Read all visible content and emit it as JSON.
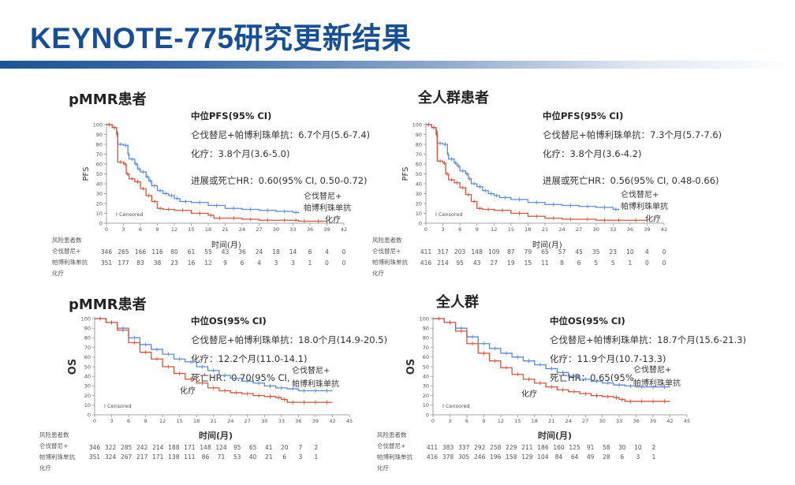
{
  "header": {
    "title": "KEYNOTE-775研究更新结果"
  },
  "colors": {
    "title": "#164f93",
    "lenva_pembro": "#5b8ad0",
    "chemo": "#d0563e"
  },
  "panels": [
    {
      "title": "pMMR患者",
      "stats": {
        "heading": "中位PFS(95% CI)",
        "line1": "仑伐替尼+帕博利珠单抗：6.7个月(5.6-7.4)",
        "line2": "化疗：3.8个月(3.6-5.0)",
        "line3": "进展或死亡HR：0.60(95% CI, 0.50-0.72)"
      },
      "ylabel": "PFS",
      "censored_label": "I  Censored",
      "curve_label_1a": "仑伐替尼+",
      "curve_label_1b": "帕博利珠单抗",
      "curve_label_2": "化疗",
      "xlabel": "时间(月)",
      "risk": {
        "header": "风险患者数",
        "label1a": "仑伐替尼+",
        "label1b": "帕博利珠单抗",
        "label2": "化疗"
      }
    },
    {
      "title": "全人群患者",
      "stats": {
        "heading": "中位PFS(95% CI)",
        "line1": "仑伐替尼+帕博利珠单抗：7.3个月(5.7-7.6)",
        "line2": "化疗：3.8个月(3.6-4.2)",
        "line3": "进展或死亡HR：0.56(95% CI, 0.48-0.66)"
      },
      "ylabel": "PFS",
      "censored_label": "I  Censored",
      "curve_label_1a": "仑伐替尼+",
      "curve_label_1b": "帕博利珠单抗",
      "curve_label_2": "化疗",
      "xlabel": "时间(月)",
      "risk": {
        "header": "风险患者数",
        "label1a": "仑伐替尼+",
        "label1b": "帕博利珠单抗",
        "label2": "化疗"
      }
    },
    {
      "title": "pMMR患者",
      "stats": {
        "heading": "中位OS(95% CI)",
        "line1": "仑伐替尼+帕博利珠单抗：18.0个月(14.9-20.5)",
        "line2": "化疗：12.2个月(11.0-14.1)",
        "line3": "死亡HR：0.70(95% CI,"
      },
      "ylabel": "OS",
      "censored_label": "I  Censored",
      "curve_label_1a": "仑伐替尼+",
      "curve_label_1b": "帕博利珠单抗",
      "curve_label_2": "化疗",
      "xlabel": "时间(月)",
      "risk": {
        "header": "风险患者数",
        "label1a": "仑伐替尼+",
        "label1b": "帕博利珠单抗",
        "label2": "化疗"
      }
    },
    {
      "title": "全人群",
      "stats": {
        "heading": "中位OS(95% CI)",
        "line1": "仑伐替尼+帕博利珠单抗：18.7个月(15.6-21.3)",
        "line2": "化疗：11.9个月(10.7-13.3)",
        "line3": "死亡HR：0.65(95%"
      },
      "ylabel": "OS",
      "censored_label": "I  Censored",
      "curve_label_1a": "仑伐替尼+",
      "curve_label_1b": "帕博利珠单抗",
      "curve_label_2": "化疗",
      "xlabel": "时间(月)",
      "risk": {
        "header": "风险患者数",
        "label1a": "仑伐替尼+",
        "label1b": "帕博利珠单抗",
        "label2": "化疗"
      }
    }
  ],
  "chart_data": [
    {
      "type": "line",
      "title": "pMMR患者 — PFS",
      "xlabel": "时间(月)",
      "ylabel": "PFS",
      "xlim": [
        0,
        42
      ],
      "ylim": [
        0,
        100
      ],
      "x_ticks": [
        0,
        3,
        6,
        9,
        12,
        15,
        18,
        21,
        24,
        27,
        30,
        33,
        36,
        39,
        42
      ],
      "y_ticks": [
        0,
        10,
        20,
        30,
        40,
        50,
        60,
        70,
        80,
        90,
        100
      ],
      "legend": "curve labels at right end",
      "series": [
        {
          "name": "仑伐替尼+帕博利珠单抗",
          "color": "#5b8ad0",
          "x": [
            0,
            1,
            1.8,
            2,
            3,
            3.8,
            4,
            5,
            5.5,
            6,
            7,
            7.5,
            8,
            9,
            10,
            11,
            12,
            13,
            15,
            18,
            21,
            24,
            27,
            30,
            33,
            34
          ],
          "y": [
            100,
            97,
            92,
            80,
            79,
            70,
            65,
            60,
            55,
            52,
            47,
            43,
            38,
            33,
            30,
            28,
            25,
            22,
            21,
            18,
            15,
            14,
            13,
            12,
            11,
            10
          ]
        },
        {
          "name": "化疗",
          "color": "#d0563e",
          "x": [
            0,
            1,
            1.8,
            2,
            3,
            3.5,
            4,
            5,
            6,
            7,
            8,
            9,
            10,
            12,
            15,
            18,
            19,
            21,
            24,
            27,
            30,
            33,
            34,
            36,
            39
          ],
          "y": [
            100,
            97,
            90,
            62,
            60,
            50,
            45,
            42,
            35,
            28,
            22,
            15,
            14,
            13,
            10,
            8,
            5,
            5,
            4,
            3,
            3,
            3,
            2,
            2,
            2
          ]
        }
      ],
      "risk_table": {
        "times": [
          0,
          3,
          6,
          9,
          12,
          15,
          18,
          21,
          24,
          27,
          30,
          33,
          36,
          39,
          42
        ],
        "仑伐替尼+帕博利珠单抗": [
          346,
          265,
          166,
          116,
          80,
          61,
          55,
          43,
          36,
          24,
          18,
          14,
          6,
          4,
          0
        ],
        "化疗": [
          351,
          177,
          83,
          38,
          23,
          16,
          12,
          9,
          6,
          4,
          3,
          3,
          1,
          0,
          0
        ]
      },
      "annotations": [
        "I Censored"
      ]
    },
    {
      "type": "line",
      "title": "全人群患者 — PFS",
      "xlabel": "时间(月)",
      "ylabel": "PFS",
      "xlim": [
        0,
        42
      ],
      "ylim": [
        0,
        100
      ],
      "x_ticks": [
        0,
        3,
        6,
        9,
        12,
        15,
        18,
        21,
        24,
        27,
        30,
        33,
        36,
        39,
        42
      ],
      "y_ticks": [
        0,
        10,
        20,
        30,
        40,
        50,
        60,
        70,
        80,
        90,
        100
      ],
      "series": [
        {
          "name": "仑伐替尼+帕博利珠单抗",
          "color": "#5b8ad0",
          "x": [
            0,
            1,
            1.8,
            2,
            3,
            3.8,
            4,
            5,
            5.5,
            6,
            7,
            7.5,
            8,
            9,
            10,
            11,
            12,
            13,
            15,
            18,
            21,
            24,
            27,
            30,
            33,
            34
          ],
          "y": [
            100,
            97,
            93,
            81,
            80,
            70,
            65,
            61,
            58,
            53,
            50,
            45,
            40,
            37,
            33,
            30,
            28,
            26,
            24,
            21,
            19,
            18,
            17,
            16,
            14,
            13
          ]
        },
        {
          "name": "化疗",
          "color": "#d0563e",
          "x": [
            0,
            1,
            1.8,
            2,
            3,
            3.5,
            4,
            5,
            6,
            7,
            8,
            9,
            10,
            12,
            15,
            18,
            21,
            24,
            27,
            30,
            33,
            35,
            39
          ],
          "y": [
            100,
            97,
            90,
            63,
            61,
            50,
            44,
            41,
            36,
            29,
            22,
            15,
            14,
            13,
            10,
            7,
            5,
            4,
            4,
            3,
            3,
            3,
            3
          ]
        }
      ],
      "risk_table": {
        "times": [
          0,
          3,
          6,
          9,
          12,
          15,
          18,
          21,
          24,
          27,
          30,
          33,
          36,
          39,
          42
        ],
        "仑伐替尼+帕博利珠单抗": [
          411,
          317,
          203,
          148,
          109,
          87,
          79,
          65,
          57,
          45,
          35,
          23,
          10,
          4,
          0
        ],
        "化疗": [
          416,
          214,
          95,
          43,
          27,
          19,
          15,
          11,
          8,
          6,
          5,
          5,
          1,
          0,
          0
        ]
      },
      "annotations": [
        "I Censored"
      ]
    },
    {
      "type": "line",
      "title": "pMMR患者 — OS",
      "xlabel": "时间(月)",
      "ylabel": "OS",
      "xlim": [
        0,
        45
      ],
      "ylim": [
        0,
        100
      ],
      "x_ticks": [
        0,
        3,
        6,
        9,
        12,
        15,
        18,
        21,
        24,
        27,
        30,
        33,
        36,
        39,
        42,
        45
      ],
      "y_ticks": [
        0,
        10,
        20,
        30,
        40,
        50,
        60,
        70,
        80,
        90,
        100
      ],
      "series": [
        {
          "name": "仑伐替尼+帕博利珠单抗",
          "color": "#5b8ad0",
          "x": [
            0,
            2,
            4,
            6,
            8,
            10,
            12,
            14,
            16,
            18,
            20,
            22,
            24,
            26,
            28,
            30,
            32,
            34,
            36,
            38,
            40,
            42
          ],
          "y": [
            100,
            96,
            90,
            80,
            73,
            68,
            63,
            58,
            55,
            50,
            46,
            41,
            38,
            35,
            33,
            30,
            28,
            27,
            25,
            25,
            25,
            25
          ]
        },
        {
          "name": "化疗",
          "color": "#d0563e",
          "x": [
            0,
            2,
            4,
            6,
            8,
            10,
            12,
            14,
            16,
            18,
            20,
            22,
            24,
            26,
            28,
            30,
            32,
            33,
            34,
            36,
            38,
            40,
            42
          ],
          "y": [
            100,
            96,
            88,
            75,
            65,
            58,
            50,
            43,
            37,
            33,
            28,
            25,
            23,
            22,
            20,
            19,
            18,
            16,
            13,
            13,
            13,
            13,
            13
          ]
        }
      ],
      "risk_table": {
        "times": [
          0,
          3,
          6,
          9,
          12,
          15,
          18,
          21,
          24,
          27,
          30,
          33,
          36,
          39,
          42
        ],
        "仑伐替尼+帕博利珠单抗": [
          346,
          322,
          285,
          242,
          214,
          188,
          171,
          148,
          124,
          95,
          65,
          41,
          20,
          7,
          2
        ],
        "化疗": [
          351,
          324,
          267,
          217,
          171,
          138,
          111,
          86,
          71,
          53,
          40,
          21,
          6,
          3,
          1
        ]
      },
      "annotations": [
        "I Censored"
      ]
    },
    {
      "type": "line",
      "title": "全人群 — OS",
      "xlabel": "时间(月)",
      "ylabel": "OS",
      "xlim": [
        0,
        45
      ],
      "ylim": [
        0,
        100
      ],
      "x_ticks": [
        0,
        3,
        6,
        9,
        12,
        15,
        18,
        21,
        24,
        27,
        30,
        33,
        36,
        39,
        42,
        45
      ],
      "y_ticks": [
        0,
        10,
        20,
        30,
        40,
        50,
        60,
        70,
        80,
        90,
        100
      ],
      "series": [
        {
          "name": "仑伐替尼+帕博利珠单抗",
          "color": "#5b8ad0",
          "x": [
            0,
            2,
            4,
            6,
            8,
            10,
            12,
            14,
            16,
            18,
            20,
            22,
            24,
            26,
            28,
            30,
            32,
            34,
            36,
            38,
            40,
            42
          ],
          "y": [
            100,
            96,
            90,
            81,
            74,
            69,
            64,
            60,
            56,
            52,
            48,
            44,
            40,
            37,
            35,
            33,
            31,
            30,
            29,
            29,
            29,
            29
          ]
        },
        {
          "name": "化疗",
          "color": "#d0563e",
          "x": [
            0,
            2,
            4,
            6,
            8,
            10,
            12,
            14,
            16,
            18,
            20,
            22,
            24,
            26,
            28,
            30,
            32,
            33,
            34,
            36,
            38,
            40,
            42
          ],
          "y": [
            100,
            96,
            87,
            74,
            64,
            56,
            49,
            42,
            37,
            33,
            29,
            26,
            24,
            22,
            20,
            19,
            18,
            16,
            14,
            14,
            14,
            14,
            14
          ]
        }
      ],
      "risk_table": {
        "times": [
          0,
          3,
          6,
          9,
          12,
          15,
          18,
          21,
          24,
          27,
          30,
          33,
          36,
          39,
          42
        ],
        "仑伐替尼+帕博利珠单抗": [
          411,
          383,
          337,
          292,
          258,
          229,
          211,
          186,
          160,
          125,
          91,
          58,
          30,
          10,
          2
        ],
        "化疗": [
          416,
          378,
          305,
          246,
          196,
          158,
          129,
          104,
          84,
          64,
          49,
          28,
          6,
          3,
          1
        ]
      },
      "annotations": [
        "I Censored"
      ]
    }
  ]
}
